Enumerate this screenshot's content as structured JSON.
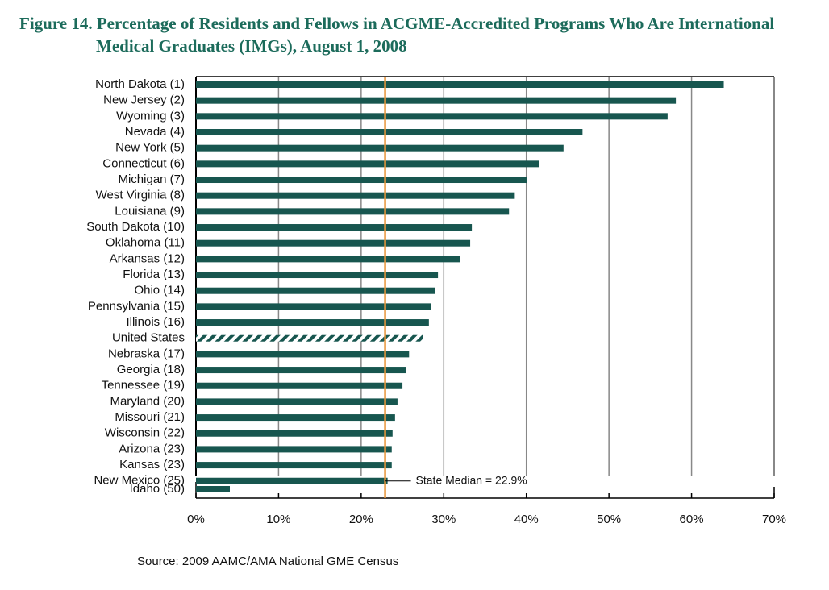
{
  "chart_data": {
    "type": "bar",
    "orientation": "horizontal",
    "title": [
      "Figure 14. Percentage of Residents and Fellows in ACGME-Accredited Programs Who Are International",
      "Medical  Graduates (IMGs), August 1, 2008"
    ],
    "categories": [
      "North Dakota (1)",
      "New Jersey (2)",
      "Wyoming (3)",
      "Nevada (4)",
      "New York (5)",
      "Connecticut (6)",
      "Michigan (7)",
      "West Virginia (8)",
      "Louisiana (9)",
      "South Dakota (10)",
      "Oklahoma (11)",
      "Arkansas (12)",
      "Florida (13)",
      "Ohio (14)",
      "Pennsylvania (15)",
      "Illinois (16)",
      "United States",
      "Nebraska (17)",
      "Georgia (18)",
      "Tennessee (19)",
      "Maryland (20)",
      "Missouri (21)",
      "Wisconsin (22)",
      "Arizona (23)",
      "Kansas (23)",
      "New Mexico (25)",
      "Idaho (50)"
    ],
    "values": [
      63.9,
      58.1,
      57.1,
      46.8,
      44.5,
      41.5,
      40.1,
      38.6,
      37.9,
      33.4,
      33.2,
      32.0,
      29.3,
      28.9,
      28.5,
      28.2,
      27.5,
      25.8,
      25.4,
      25.0,
      24.4,
      24.1,
      23.8,
      23.7,
      23.7,
      23.2,
      4.1
    ],
    "color": "#17564f",
    "hatched_index": 16,
    "gap_before_index": 26,
    "xlim": [
      0,
      70
    ],
    "xticks": [
      {
        "value": 0,
        "label": "0%"
      },
      {
        "value": 10,
        "label": "10%"
      },
      {
        "value": 20,
        "label": "20%"
      },
      {
        "value": 30,
        "label": "30%"
      },
      {
        "value": 40,
        "label": "40%"
      },
      {
        "value": 50,
        "label": "50%"
      },
      {
        "value": 60,
        "label": "60%"
      },
      {
        "value": 70,
        "label": "70%"
      }
    ],
    "grid": true,
    "median": {
      "value": 22.9,
      "label": "State Median = 22.9%",
      "color": "#e8963a"
    },
    "source": "Source:  2009 AAMC/AMA National GME Census"
  }
}
